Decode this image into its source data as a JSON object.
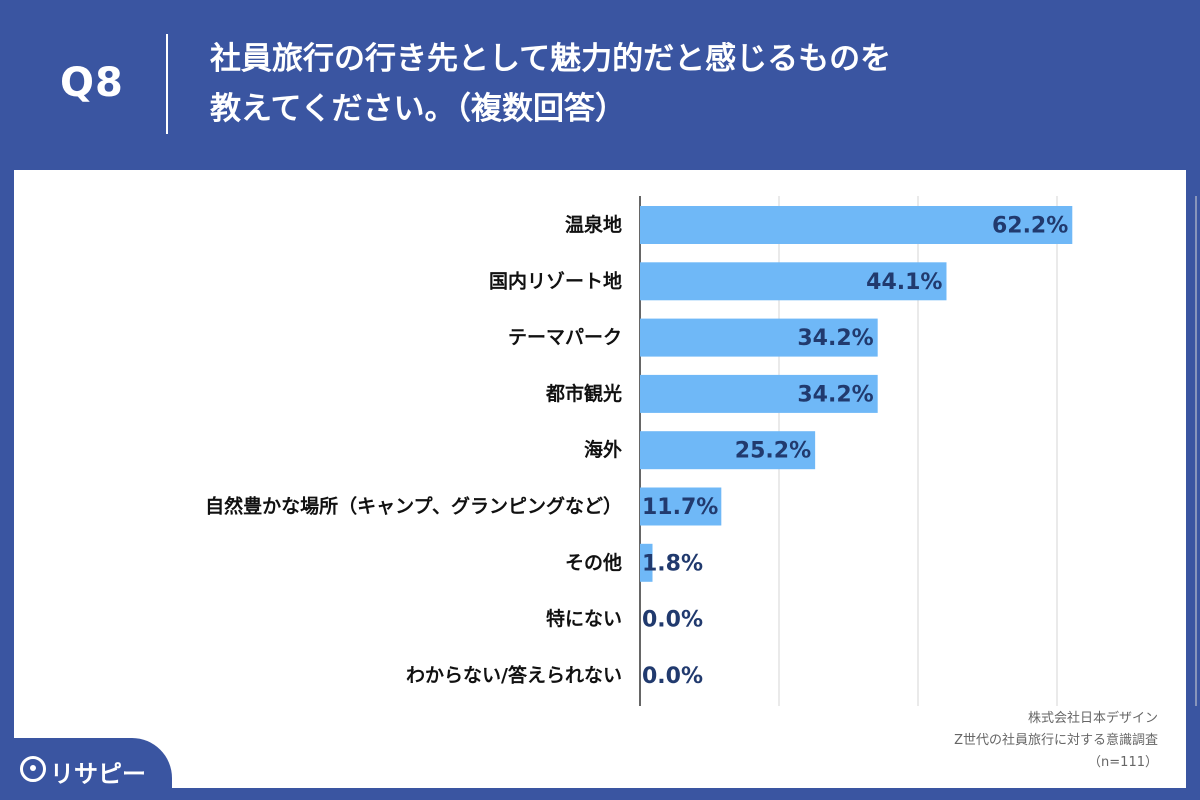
{
  "header": {
    "qnum": "Q8",
    "question_line1": "社員旅行の行き先として魅力的だと感じるものを",
    "question_line2": "教えてください。（複数回答）"
  },
  "chart_data": {
    "type": "bar",
    "orientation": "horizontal",
    "categories": [
      "温泉地",
      "国内リゾート地",
      "テーマパーク",
      "都市観光",
      "海外",
      "自然豊かな場所（キャンプ、グランピングなど）",
      "その他",
      "特にない",
      "わからない/答えられない"
    ],
    "values": [
      62.2,
      44.1,
      34.2,
      34.2,
      25.2,
      11.7,
      1.8,
      0.0,
      0.0
    ],
    "value_labels": [
      "62.2%",
      "44.1%",
      "34.2%",
      "34.2%",
      "25.2%",
      "11.7%",
      "1.8%",
      "0.0%",
      "0.0%"
    ],
    "xlim": [
      0,
      80
    ],
    "grid": true,
    "bar_color": "#6fb8f7"
  },
  "source": {
    "line1": "株式会社日本デザイン",
    "line2": "Z世代の社員旅行に対する意識調査",
    "line3": "（n=111）"
  },
  "logo": {
    "text": "リサピー",
    "icon": "pin-icon"
  }
}
